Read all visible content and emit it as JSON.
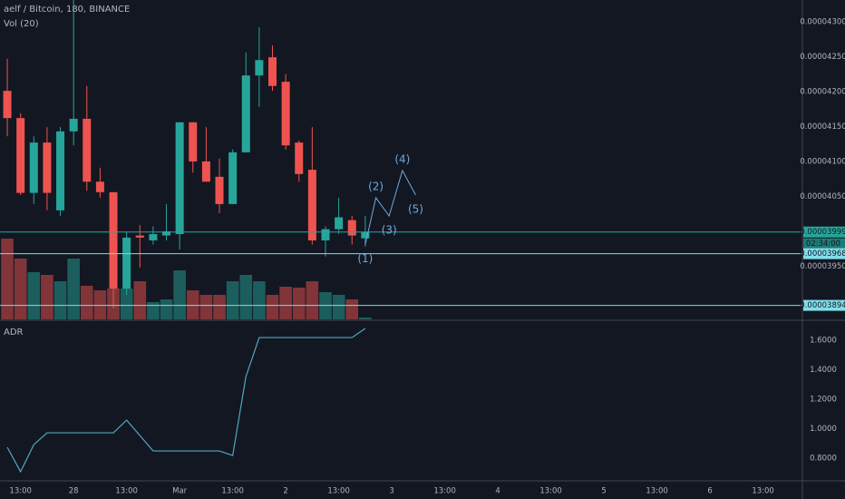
{
  "chart_data": [
    {
      "type": "candlestick",
      "title": "aelf / Bitcoin, 180, BINANCE",
      "volume_label": "Vol (20)",
      "up_color": "#26a69a",
      "down_color": "#ef5350",
      "xlim": [
        -0.55,
        59.97
      ],
      "xticks": [
        {
          "value": 1,
          "label": "13:00"
        },
        {
          "value": 5,
          "label": "28"
        },
        {
          "value": 9,
          "label": "13:00"
        },
        {
          "value": 13,
          "label": "Mar"
        },
        {
          "value": 17,
          "label": "13:00"
        },
        {
          "value": 21,
          "label": "2"
        },
        {
          "value": 25,
          "label": "13:00"
        },
        {
          "value": 29,
          "label": "3"
        },
        {
          "value": 33,
          "label": "13:00"
        },
        {
          "value": 37,
          "label": "4"
        },
        {
          "value": 41,
          "label": "13:00"
        },
        {
          "value": 45,
          "label": "5"
        },
        {
          "value": 49,
          "label": "13:00"
        },
        {
          "value": 53,
          "label": "6"
        },
        {
          "value": 57,
          "label": "13:00"
        }
      ],
      "ylim": [
        3.874e-05,
        4.331e-05
      ],
      "yticks": [
        {
          "value": 4.3e-05,
          "label": "0.00004300"
        },
        {
          "value": 4.25e-05,
          "label": "0.00004250"
        },
        {
          "value": 4.2e-05,
          "label": "0.00004200"
        },
        {
          "value": 4.15e-05,
          "label": "0.00004150"
        },
        {
          "value": 4.1e-05,
          "label": "0.00004100"
        },
        {
          "value": 4.05e-05,
          "label": "0.00004050"
        },
        {
          "value": 3.95e-05,
          "label": "0.00003950"
        }
      ],
      "open": [
        4.201e-05,
        4.162e-05,
        4.055e-05,
        4.127e-05,
        4.03e-05,
        4.143e-05,
        4.161e-05,
        4.071e-05,
        4.056e-05,
        3.918e-05,
        3.994e-05,
        3.987e-05,
        3.994e-05,
        3.996e-05,
        4.156e-05,
        4.1e-05,
        4.078e-05,
        4.039e-05,
        4.113e-05,
        4.223e-05,
        4.249e-05,
        4.214e-05,
        4.127e-05,
        4.088e-05,
        3.987e-05,
        4.003e-05,
        4.016e-05,
        3.99e-05
      ],
      "high": [
        4.247e-05,
        4.169e-05,
        4.136e-05,
        4.149e-05,
        4.149e-05,
        4.331e-05,
        4.208e-05,
        4.091e-05,
        4.052e-05,
        4e-05,
        4.009e-05,
        4.007e-05,
        4.039e-05,
        4.156e-05,
        4.156e-05,
        4.149e-05,
        4.104e-05,
        4.117e-05,
        4.256e-05,
        4.292e-05,
        4.266e-05,
        4.225e-05,
        4.13e-05,
        4.149e-05,
        4.007e-05,
        4.048e-05,
        4.022e-05,
        4.022e-05
      ],
      "low": [
        4.136e-05,
        4.052e-05,
        4.039e-05,
        4.03e-05,
        4.022e-05,
        4.123e-05,
        4.058e-05,
        4.048e-05,
        3.89e-05,
        3.909e-05,
        3.948e-05,
        3.981e-05,
        3.987e-05,
        3.974e-05,
        4.084e-05,
        4.071e-05,
        4.026e-05,
        4.039e-05,
        4.113e-05,
        4.178e-05,
        4.201e-05,
        4.117e-05,
        4.071e-05,
        3.981e-05,
        3.964e-05,
        3.996e-05,
        3.981e-05,
        3.978e-05
      ],
      "close": [
        4.162e-05,
        4.055e-05,
        4.127e-05,
        4.055e-05,
        4.143e-05,
        4.161e-05,
        4.071e-05,
        4.056e-05,
        3.918e-05,
        3.991e-05,
        3.991e-05,
        3.996e-05,
        4e-05,
        4.156e-05,
        4.1e-05,
        4.071e-05,
        4.039e-05,
        4.113e-05,
        4.223e-05,
        4.245e-05,
        4.208e-05,
        4.123e-05,
        4.082e-05,
        3.987e-05,
        4.003e-05,
        4.02e-05,
        3.994e-05,
        3.999e-05
      ],
      "volume": [
        89,
        67,
        52,
        49,
        42,
        67,
        37,
        32,
        34,
        34,
        42,
        19,
        22,
        54,
        32,
        27,
        27,
        42,
        49,
        42,
        27,
        36,
        35,
        42,
        30,
        27,
        22,
        2
      ],
      "price_lines": [
        {
          "value": 3.999e-05,
          "label": "0.00003999",
          "color": "#26a69a"
        },
        {
          "value": 3.968e-05,
          "label": "0.00003968",
          "color": "#80deea"
        },
        {
          "value": 3.894e-05,
          "label": "0.00003894",
          "color": "#80deea"
        }
      ],
      "countdown": "02:34:00",
      "wave": {
        "color": "#6fa8dc",
        "labels": [
          "(1)",
          "(2)",
          "(3)",
          "(4)",
          "(5)"
        ],
        "x": [
          27,
          27.8,
          28.8,
          29.8,
          30.8
        ],
        "y": [
          3.981e-05,
          4.048e-05,
          4.022e-05,
          4.087e-05,
          4.052e-05
        ]
      }
    },
    {
      "type": "line",
      "title": "ADR",
      "color": "#4fa8c4",
      "ylim": [
        0.677,
        1.723
      ],
      "yticks": [
        {
          "value": 1.6,
          "label": "1.6000"
        },
        {
          "value": 1.4,
          "label": "1.4000"
        },
        {
          "value": 1.2,
          "label": "1.2000"
        },
        {
          "value": 1,
          "label": "1.0000"
        },
        {
          "value": 0.8,
          "label": "0.8000"
        }
      ],
      "values": [
        0.874,
        0.708,
        0.892,
        0.972,
        0.972,
        0.972,
        0.972,
        0.972,
        0.972,
        1.058,
        0.954,
        0.849,
        0.849,
        0.849,
        0.849,
        0.849,
        0.849,
        0.818,
        1.354,
        1.618,
        1.618,
        1.618,
        1.618,
        1.618,
        1.618,
        1.618,
        1.618,
        1.68
      ]
    }
  ]
}
